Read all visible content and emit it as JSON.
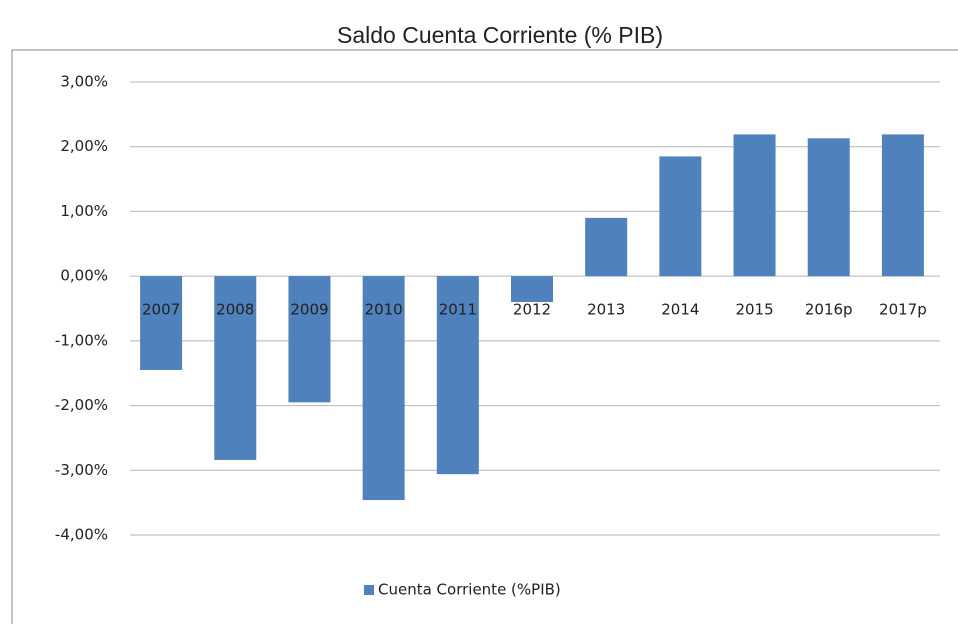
{
  "chart_data": {
    "type": "bar",
    "title": "Saldo Cuenta Corriente (% PIB)",
    "categories": [
      "2007",
      "2008",
      "2009",
      "2010",
      "2011",
      "2012",
      "2013",
      "2014",
      "2015",
      "2016p",
      "2017p"
    ],
    "series": [
      {
        "name": "Cuenta Corriente (%PIB)",
        "color": "#4f81bd",
        "values": [
          -1.45,
          -2.84,
          -1.95,
          -3.46,
          -3.06,
          -0.4,
          0.9,
          1.85,
          2.19,
          2.13,
          2.19
        ]
      }
    ],
    "ylim": [
      -4,
      3
    ],
    "yticks": [
      {
        "value": -4,
        "label": "-4,00%"
      },
      {
        "value": -3,
        "label": "-3,00%"
      },
      {
        "value": -2,
        "label": "-2,00%"
      },
      {
        "value": -1,
        "label": "-1,00%"
      },
      {
        "value": 0,
        "label": "0,00%"
      },
      {
        "value": 1,
        "label": "1,00%"
      },
      {
        "value": 2,
        "label": "2,00%"
      },
      {
        "value": 3,
        "label": "3,00%"
      }
    ],
    "grid": true,
    "legend": "bottom"
  }
}
